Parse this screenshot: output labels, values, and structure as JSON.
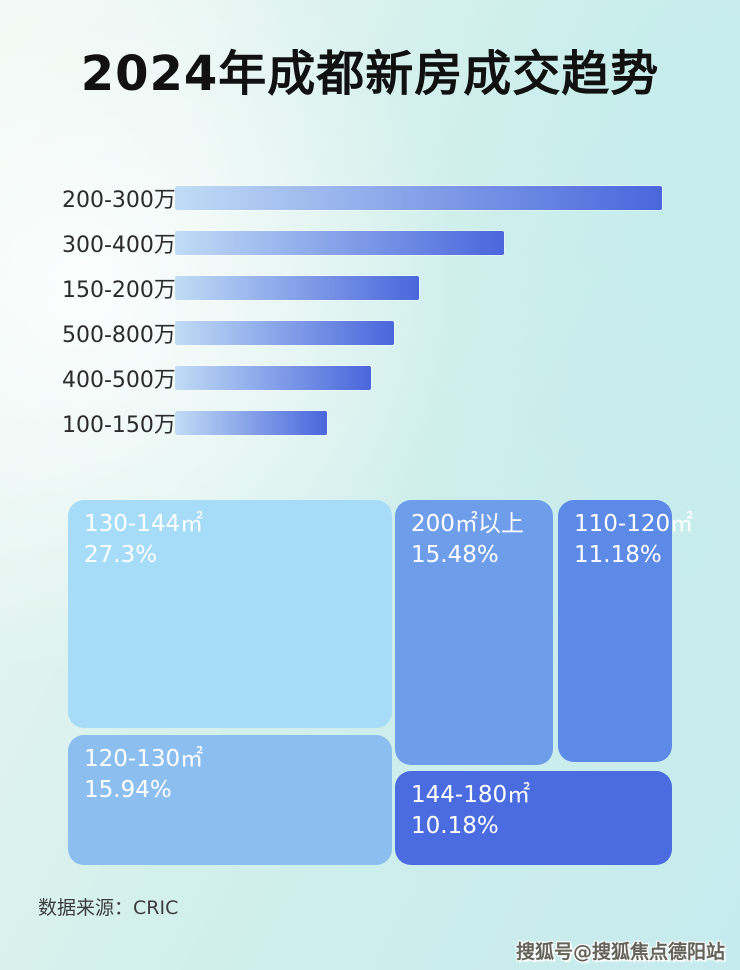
{
  "page": {
    "title": "2024年成都新房成交趋势",
    "footer": {
      "source_label": "数据来源：CRIC"
    },
    "watermark": "搜狐号@搜狐焦点德阳站"
  },
  "chart_data": [
    {
      "type": "bar",
      "orientation": "horizontal",
      "title": "2024年成都新房成交趋势",
      "categories": [
        "200-300万",
        "300-400万",
        "150-200万",
        "500-800万",
        "400-500万",
        "100-150万"
      ],
      "relative_width_pct": [
        100,
        67.5,
        50,
        45,
        40.3,
        31.3
      ],
      "value_labels_shown": false,
      "axis_shown": false,
      "legend": "none"
    },
    {
      "type": "treemap",
      "items": [
        {
          "label": "130-144㎡",
          "pct_label": "27.3%",
          "value": 27.3
        },
        {
          "label": "120-130㎡",
          "pct_label": "15.94%",
          "value": 15.94
        },
        {
          "label": "200㎡以上",
          "pct_label": "15.48%",
          "value": 15.48
        },
        {
          "label": "110-120㎡",
          "pct_label": "11.18%",
          "value": 11.18
        },
        {
          "label": "144-180㎡",
          "pct_label": "10.18%",
          "value": 10.18
        }
      ]
    }
  ],
  "colors": {
    "title_color": "#111111",
    "label_color": "#2b2b2b",
    "footer_color": "#3d3d3d",
    "watermark_color": "#63635a",
    "bar_start": "#c0dcf5",
    "bar_end": "#4a66dc",
    "block_130_144": "#a6dcf8",
    "block_120_130": "#8cbef0",
    "block_200_plus": "#6e9dea",
    "block_110_120": "#5c8ae6",
    "block_144_180": "#4a6ce0",
    "background_tint": "#cdeeec"
  }
}
